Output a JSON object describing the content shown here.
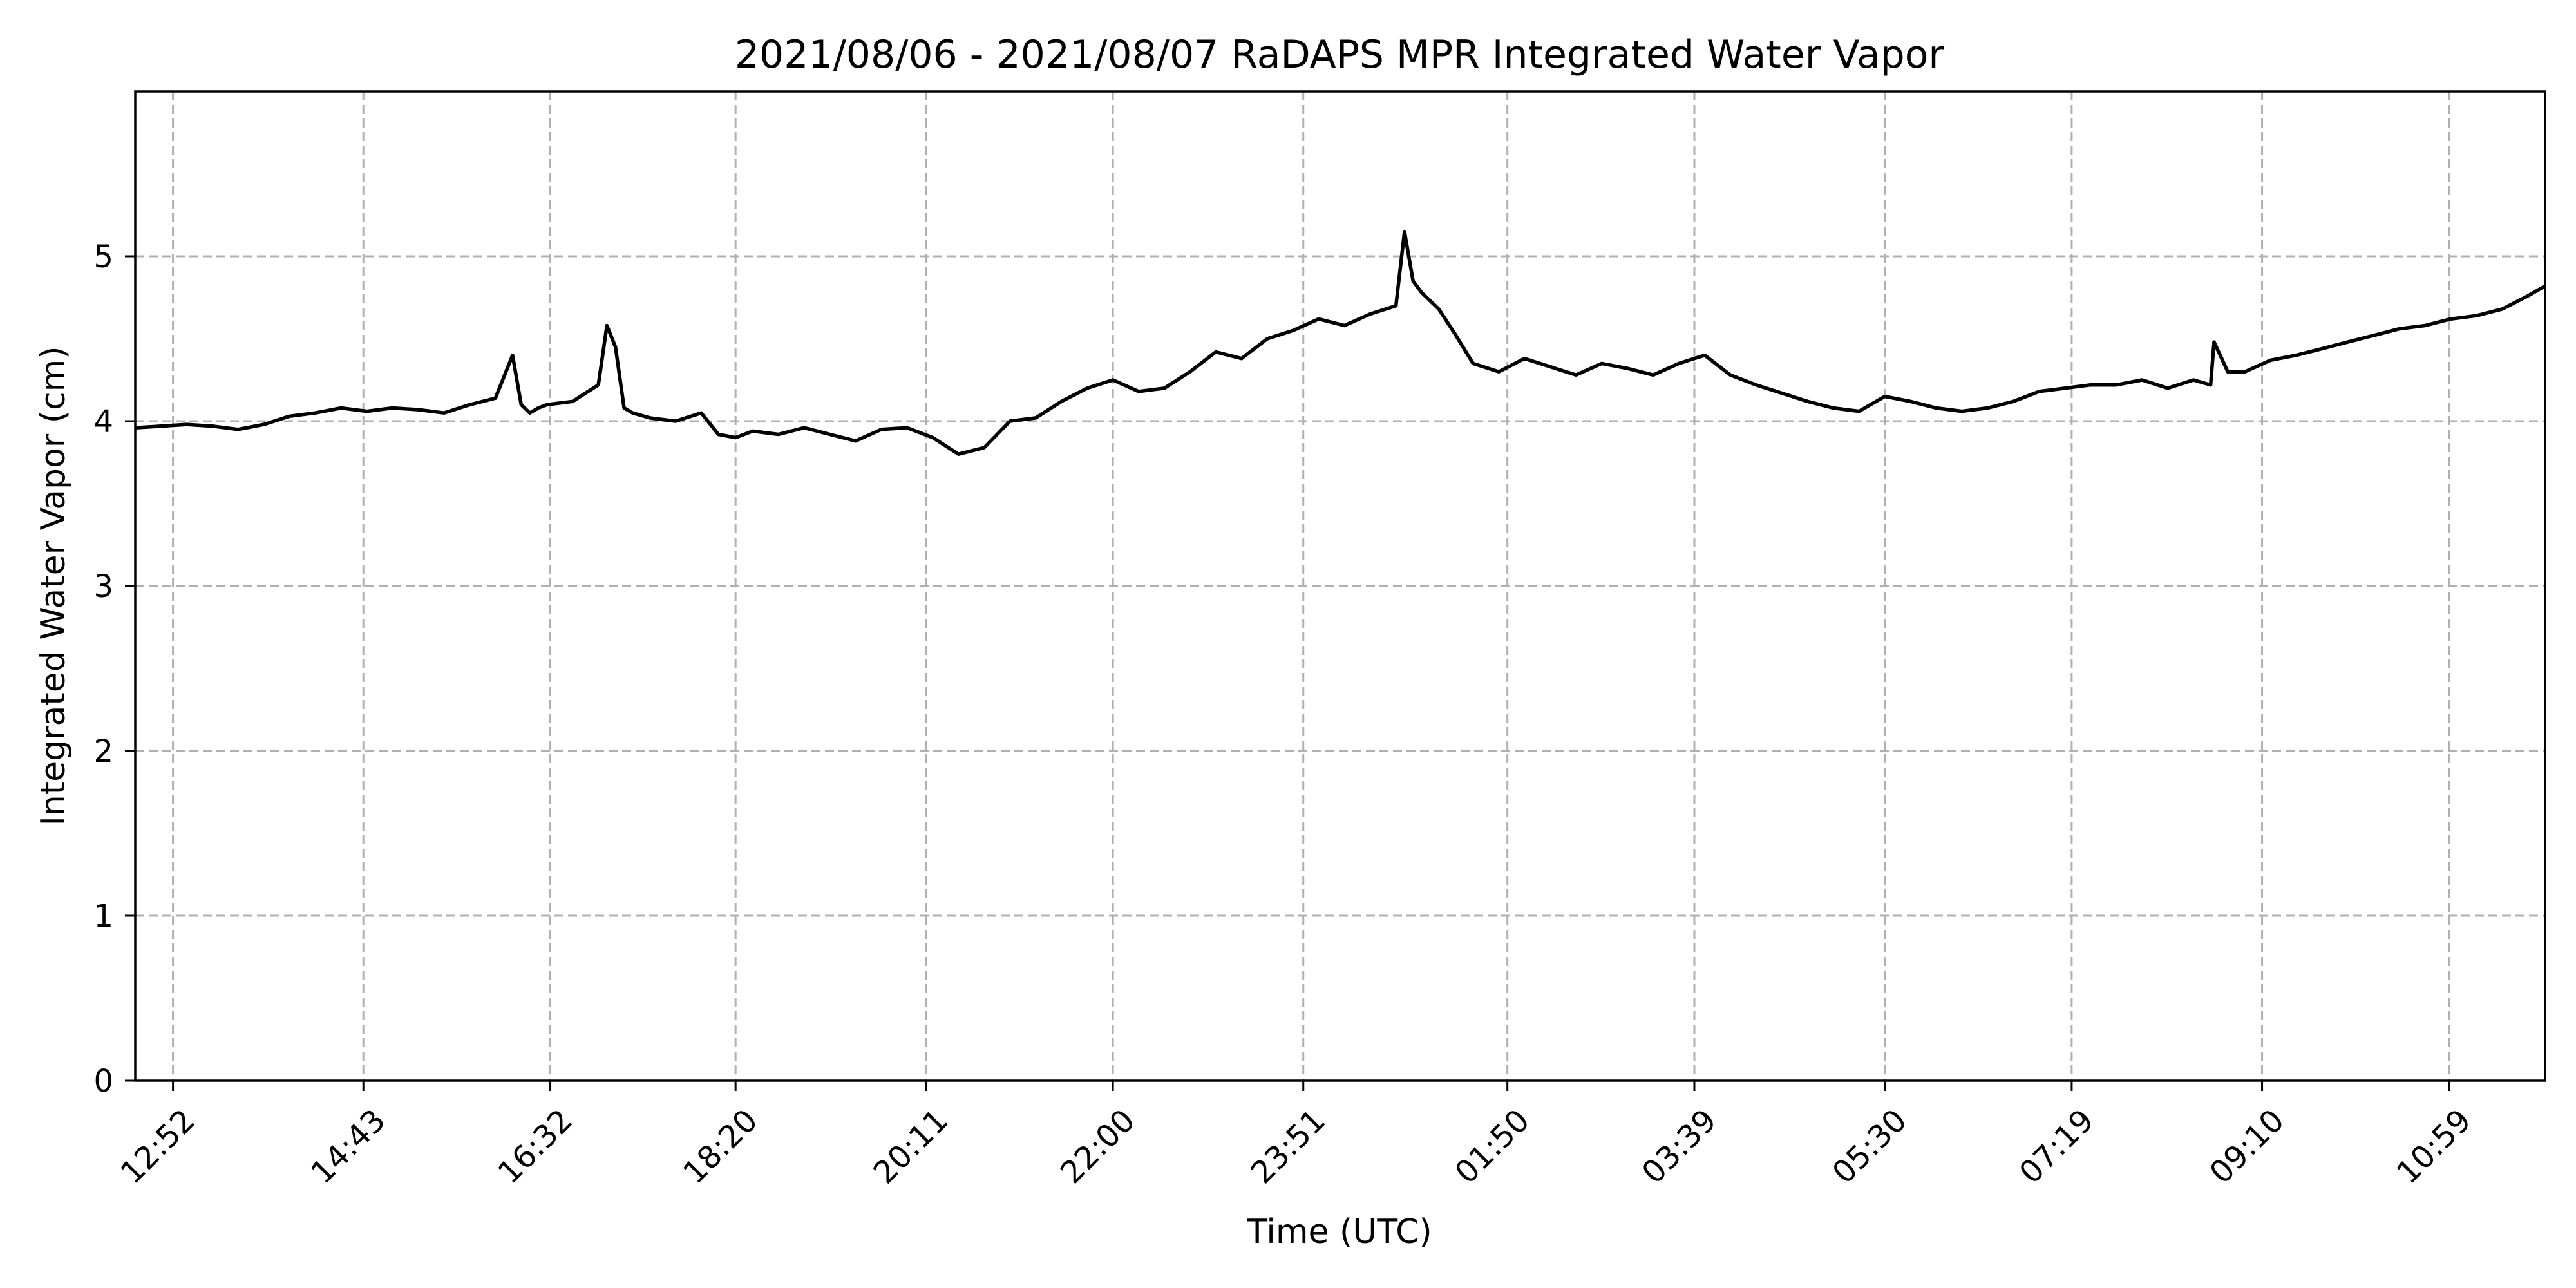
{
  "chart_data": {
    "type": "line",
    "title": "2021/08/06 - 2021/08/07 RaDAPS MPR Integrated Water Vapor",
    "xlabel": "Time (UTC)",
    "ylabel": "Integrated Water Vapor (cm)",
    "ylim": [
      0,
      6
    ],
    "yticks": [
      0,
      1,
      2,
      3,
      4,
      5
    ],
    "xlim": [
      "2021-08-06 12:30",
      "2021-08-07 11:55"
    ],
    "xticks": [
      {
        "time": "2021-08-06 12:52",
        "label": "12:52"
      },
      {
        "time": "2021-08-06 14:43",
        "label": "14:43"
      },
      {
        "time": "2021-08-06 16:32",
        "label": "16:32"
      },
      {
        "time": "2021-08-06 18:20",
        "label": "18:20"
      },
      {
        "time": "2021-08-06 20:11",
        "label": "20:11"
      },
      {
        "time": "2021-08-06 22:00",
        "label": "22:00"
      },
      {
        "time": "2021-08-06 23:51",
        "label": "23:51"
      },
      {
        "time": "2021-08-07 01:50",
        "label": "01:50"
      },
      {
        "time": "2021-08-07 03:39",
        "label": "03:39"
      },
      {
        "time": "2021-08-07 05:30",
        "label": "05:30"
      },
      {
        "time": "2021-08-07 07:19",
        "label": "07:19"
      },
      {
        "time": "2021-08-07 09:10",
        "label": "09:10"
      },
      {
        "time": "2021-08-07 10:59",
        "label": "10:59"
      }
    ],
    "grid": true,
    "color": "#000000",
    "series": [
      {
        "x": [
          "2021-08-06 12:30",
          "2021-08-06 12:45",
          "2021-08-06 13:00",
          "2021-08-06 13:15",
          "2021-08-06 13:30",
          "2021-08-06 13:45",
          "2021-08-06 14:00",
          "2021-08-06 14:15",
          "2021-08-06 14:30",
          "2021-08-06 14:45",
          "2021-08-06 15:00",
          "2021-08-06 15:15",
          "2021-08-06 15:30",
          "2021-08-06 15:45",
          "2021-08-06 16:00",
          "2021-08-06 16:10",
          "2021-08-06 16:15",
          "2021-08-06 16:20",
          "2021-08-06 16:25",
          "2021-08-06 16:30",
          "2021-08-06 16:45",
          "2021-08-06 17:00",
          "2021-08-06 17:05",
          "2021-08-06 17:10",
          "2021-08-06 17:15",
          "2021-08-06 17:20",
          "2021-08-06 17:30",
          "2021-08-06 17:45",
          "2021-08-06 18:00",
          "2021-08-06 18:10",
          "2021-08-06 18:20",
          "2021-08-06 18:30",
          "2021-08-06 18:45",
          "2021-08-06 19:00",
          "2021-08-06 19:15",
          "2021-08-06 19:30",
          "2021-08-06 19:45",
          "2021-08-06 20:00",
          "2021-08-06 20:15",
          "2021-08-06 20:30",
          "2021-08-06 20:45",
          "2021-08-06 21:00",
          "2021-08-06 21:15",
          "2021-08-06 21:30",
          "2021-08-06 21:45",
          "2021-08-06 22:00",
          "2021-08-06 22:15",
          "2021-08-06 22:30",
          "2021-08-06 22:45",
          "2021-08-06 23:00",
          "2021-08-06 23:15",
          "2021-08-06 23:30",
          "2021-08-06 23:45",
          "2021-08-07 00:00",
          "2021-08-07 00:15",
          "2021-08-07 00:30",
          "2021-08-07 00:45",
          "2021-08-07 00:50",
          "2021-08-07 00:55",
          "2021-08-07 01:00",
          "2021-08-07 01:10",
          "2021-08-07 01:20",
          "2021-08-07 01:30",
          "2021-08-07 01:45",
          "2021-08-07 02:00",
          "2021-08-07 02:15",
          "2021-08-07 02:30",
          "2021-08-07 02:45",
          "2021-08-07 03:00",
          "2021-08-07 03:15",
          "2021-08-07 03:30",
          "2021-08-07 03:45",
          "2021-08-07 04:00",
          "2021-08-07 04:15",
          "2021-08-07 04:30",
          "2021-08-07 04:45",
          "2021-08-07 05:00",
          "2021-08-07 05:15",
          "2021-08-07 05:30",
          "2021-08-07 05:45",
          "2021-08-07 06:00",
          "2021-08-07 06:15",
          "2021-08-07 06:30",
          "2021-08-07 06:45",
          "2021-08-07 07:00",
          "2021-08-07 07:15",
          "2021-08-07 07:30",
          "2021-08-07 07:45",
          "2021-08-07 08:00",
          "2021-08-07 08:15",
          "2021-08-07 08:30",
          "2021-08-07 08:40",
          "2021-08-07 08:42",
          "2021-08-07 08:50",
          "2021-08-07 09:00",
          "2021-08-07 09:15",
          "2021-08-07 09:30",
          "2021-08-07 09:45",
          "2021-08-07 10:00",
          "2021-08-07 10:15",
          "2021-08-07 10:30",
          "2021-08-07 10:45",
          "2021-08-07 11:00",
          "2021-08-07 11:15",
          "2021-08-07 11:30",
          "2021-08-07 11:45",
          "2021-08-07 11:55"
        ],
        "y": [
          3.96,
          3.97,
          3.98,
          3.97,
          3.95,
          3.98,
          4.03,
          4.05,
          4.08,
          4.06,
          4.08,
          4.07,
          4.05,
          4.1,
          4.14,
          4.4,
          4.1,
          4.05,
          4.08,
          4.1,
          4.12,
          4.22,
          4.58,
          4.45,
          4.08,
          4.05,
          4.02,
          4.0,
          4.05,
          3.92,
          3.9,
          3.94,
          3.92,
          3.96,
          3.92,
          3.88,
          3.95,
          3.96,
          3.9,
          3.8,
          3.84,
          4.0,
          4.02,
          4.12,
          4.2,
          4.25,
          4.18,
          4.2,
          4.3,
          4.42,
          4.38,
          4.5,
          4.55,
          4.62,
          4.58,
          4.65,
          4.7,
          5.15,
          4.85,
          4.78,
          4.68,
          4.52,
          4.35,
          4.3,
          4.38,
          4.33,
          4.28,
          4.35,
          4.32,
          4.28,
          4.35,
          4.4,
          4.28,
          4.22,
          4.17,
          4.12,
          4.08,
          4.06,
          4.15,
          4.12,
          4.08,
          4.06,
          4.08,
          4.12,
          4.18,
          4.2,
          4.22,
          4.22,
          4.25,
          4.2,
          4.25,
          4.22,
          4.48,
          4.3,
          4.3,
          4.37,
          4.4,
          4.44,
          4.48,
          4.52,
          4.56,
          4.58,
          4.62,
          4.64,
          4.68,
          4.76,
          4.82
        ]
      }
    ]
  }
}
